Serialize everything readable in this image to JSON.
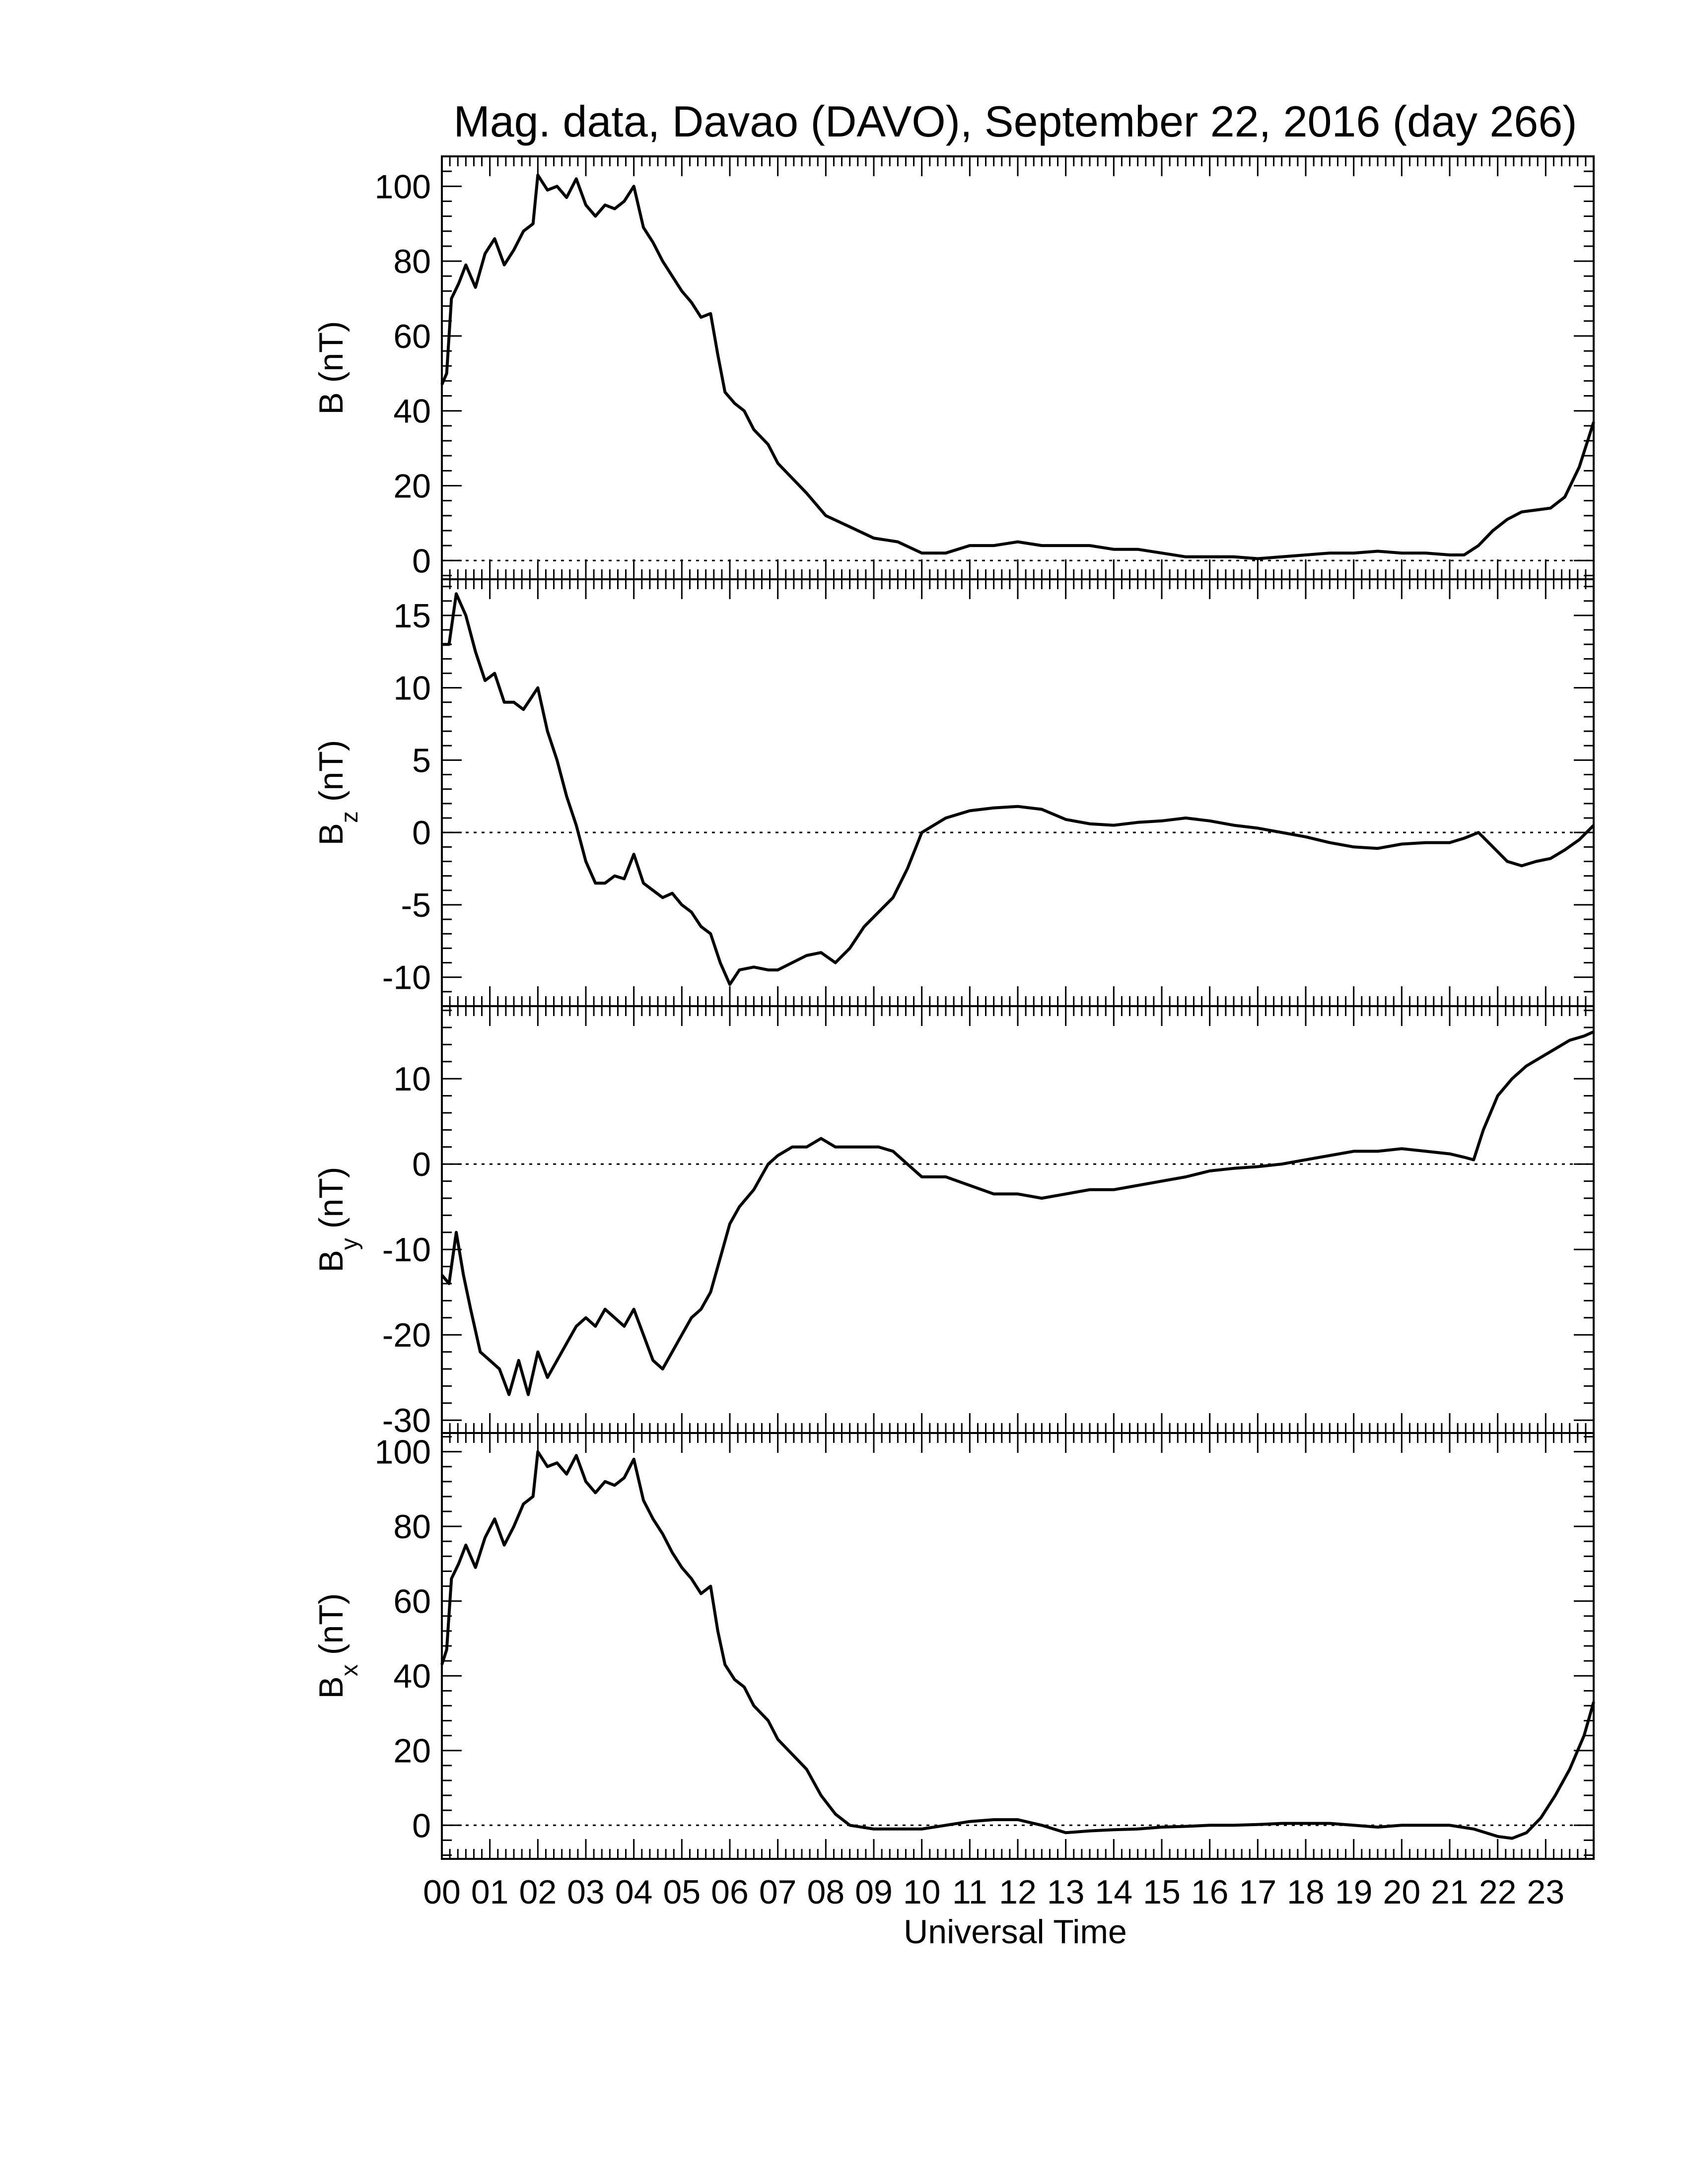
{
  "title": "Mag. data, Davao (DAVO), September 22, 2016 (day 266)",
  "xlabel": "Universal Time",
  "x_tick_labels": [
    "00",
    "01",
    "02",
    "03",
    "04",
    "05",
    "06",
    "07",
    "08",
    "09",
    "10",
    "11",
    "12",
    "13",
    "14",
    "15",
    "16",
    "17",
    "18",
    "19",
    "20",
    "21",
    "22",
    "23"
  ],
  "colors": {
    "trace": "#000000",
    "zero_line": "#000000",
    "background": "#ffffff"
  },
  "chart_data": [
    {
      "type": "line",
      "name": "B",
      "ylabel": "B (nT)",
      "xlim": [
        0,
        24
      ],
      "ylim": [
        -5,
        108
      ],
      "yticks": [
        0,
        20,
        40,
        60,
        80,
        100
      ],
      "zero_line": true,
      "x": [
        0,
        0.1,
        0.2,
        0.35,
        0.5,
        0.7,
        0.9,
        1.1,
        1.3,
        1.5,
        1.7,
        1.9,
        2.0,
        2.2,
        2.4,
        2.6,
        2.8,
        3.0,
        3.2,
        3.4,
        3.6,
        3.8,
        4.0,
        4.2,
        4.4,
        4.6,
        4.8,
        5.0,
        5.2,
        5.4,
        5.6,
        5.75,
        5.9,
        6.1,
        6.3,
        6.5,
        6.8,
        7.0,
        7.3,
        7.6,
        8.0,
        8.5,
        9.0,
        9.5,
        10.0,
        10.5,
        11.0,
        11.5,
        12.0,
        12.5,
        13.0,
        13.5,
        14.0,
        14.5,
        15.0,
        15.5,
        16.0,
        16.5,
        17.0,
        17.5,
        18.0,
        18.5,
        19.0,
        19.5,
        20.0,
        20.5,
        21.0,
        21.3,
        21.6,
        21.9,
        22.2,
        22.5,
        22.8,
        23.1,
        23.4,
        23.7,
        24.0
      ],
      "values": [
        47,
        50,
        70,
        74,
        79,
        73,
        82,
        86,
        79,
        83,
        88,
        90,
        103,
        99,
        100,
        97,
        102,
        95,
        92,
        95,
        94,
        96,
        100,
        89,
        85,
        80,
        76,
        72,
        69,
        65,
        66,
        55,
        45,
        42,
        40,
        35,
        31,
        26,
        22,
        18,
        12,
        9,
        6,
        5,
        2,
        2,
        4,
        4,
        5,
        4,
        4,
        4,
        3,
        3,
        2,
        1,
        1,
        1,
        0.5,
        1,
        1.5,
        2,
        2,
        2.5,
        2,
        2,
        1.5,
        1.5,
        4,
        8,
        11,
        13,
        13.5,
        14,
        17,
        25,
        37
      ]
    },
    {
      "type": "line",
      "name": "Bz",
      "ylabel": "B",
      "ylabel_sub": "z",
      "ylabel_unit": " (nT)",
      "xlim": [
        0,
        24
      ],
      "ylim": [
        -12,
        17.5
      ],
      "yticks": [
        -10,
        -5,
        0,
        5,
        10,
        15
      ],
      "zero_line": true,
      "x": [
        0,
        0.15,
        0.3,
        0.5,
        0.7,
        0.9,
        1.1,
        1.3,
        1.5,
        1.7,
        1.9,
        2.0,
        2.2,
        2.4,
        2.6,
        2.8,
        3.0,
        3.2,
        3.4,
        3.6,
        3.8,
        4.0,
        4.2,
        4.4,
        4.6,
        4.8,
        5.0,
        5.2,
        5.4,
        5.6,
        5.8,
        6.0,
        6.2,
        6.5,
        6.8,
        7.0,
        7.3,
        7.6,
        7.9,
        8.2,
        8.5,
        8.8,
        9.1,
        9.4,
        9.7,
        10.0,
        10.5,
        11.0,
        11.5,
        12.0,
        12.5,
        13.0,
        13.5,
        14.0,
        14.5,
        15.0,
        15.5,
        16.0,
        16.5,
        17.0,
        17.5,
        18.0,
        18.5,
        19.0,
        19.5,
        20.0,
        20.5,
        21.0,
        21.3,
        21.6,
        21.9,
        22.2,
        22.5,
        22.8,
        23.1,
        23.4,
        23.7,
        24.0
      ],
      "values": [
        13,
        13,
        16.5,
        15,
        12.5,
        10.5,
        11,
        9,
        9,
        8.5,
        9.5,
        10,
        7,
        5,
        2.5,
        0.5,
        -2,
        -3.5,
        -3.5,
        -3,
        -3.2,
        -1.5,
        -3.5,
        -4,
        -4.5,
        -4.2,
        -5,
        -5.5,
        -6.5,
        -7,
        -9,
        -10.5,
        -9.5,
        -9.3,
        -9.5,
        -9.5,
        -9,
        -8.5,
        -8.3,
        -9,
        -8,
        -6.5,
        -5.5,
        -4.5,
        -2.5,
        0,
        1,
        1.5,
        1.7,
        1.8,
        1.6,
        0.9,
        0.6,
        0.5,
        0.7,
        0.8,
        1,
        0.8,
        0.5,
        0.3,
        0,
        -0.3,
        -0.7,
        -1,
        -1.1,
        -0.8,
        -0.7,
        -0.7,
        -0.4,
        0,
        -1,
        -2,
        -2.3,
        -2,
        -1.8,
        -1.2,
        -0.5,
        0.5
      ]
    },
    {
      "type": "line",
      "name": "By",
      "ylabel": "B",
      "ylabel_sub": "y",
      "ylabel_unit": " (nT)",
      "xlim": [
        0,
        24
      ],
      "ylim": [
        -31.5,
        18.5
      ],
      "yticks": [
        -30,
        -20,
        -10,
        0,
        10
      ],
      "zero_line": true,
      "x": [
        0,
        0.15,
        0.3,
        0.45,
        0.6,
        0.8,
        1.0,
        1.2,
        1.4,
        1.6,
        1.8,
        2.0,
        2.2,
        2.4,
        2.6,
        2.8,
        3.0,
        3.2,
        3.4,
        3.6,
        3.8,
        4.0,
        4.2,
        4.4,
        4.6,
        4.8,
        5.0,
        5.2,
        5.4,
        5.6,
        5.8,
        6.0,
        6.2,
        6.5,
        6.8,
        7.0,
        7.3,
        7.6,
        7.9,
        8.2,
        8.5,
        8.8,
        9.1,
        9.4,
        9.7,
        10.0,
        10.5,
        11.0,
        11.5,
        12.0,
        12.5,
        13.0,
        13.5,
        14.0,
        14.5,
        15.0,
        15.5,
        16.0,
        16.5,
        17.0,
        17.5,
        18.0,
        18.5,
        19.0,
        19.5,
        20.0,
        20.5,
        21.0,
        21.3,
        21.5,
        21.7,
        22.0,
        22.3,
        22.6,
        22.9,
        23.2,
        23.5,
        23.8,
        24.0
      ],
      "values": [
        -13,
        -14,
        -8,
        -13,
        -17,
        -22,
        -23,
        -24,
        -27,
        -23,
        -27,
        -22,
        -25,
        -23,
        -21,
        -19,
        -18,
        -19,
        -17,
        -18,
        -19,
        -17,
        -20,
        -23,
        -24,
        -22,
        -20,
        -18,
        -17,
        -15,
        -11,
        -7,
        -5,
        -3,
        0,
        1,
        2,
        2,
        3,
        2,
        2,
        2,
        2,
        1.5,
        0,
        -1.5,
        -1.5,
        -2.5,
        -3.5,
        -3.5,
        -4,
        -3.5,
        -3,
        -3,
        -2.5,
        -2,
        -1.5,
        -0.8,
        -0.5,
        -0.3,
        0,
        0.5,
        1,
        1.5,
        1.5,
        1.8,
        1.5,
        1.2,
        0.8,
        0.5,
        4,
        8,
        10,
        11.5,
        12.5,
        13.5,
        14.5,
        15,
        15.5
      ]
    },
    {
      "type": "line",
      "name": "Bx",
      "ylabel": "B",
      "ylabel_sub": "x",
      "ylabel_unit": " (nT)",
      "xlim": [
        0,
        24
      ],
      "ylim": [
        -9,
        105
      ],
      "yticks": [
        0,
        20,
        40,
        60,
        80,
        100
      ],
      "zero_line": true,
      "x": [
        0,
        0.1,
        0.2,
        0.35,
        0.5,
        0.7,
        0.9,
        1.1,
        1.3,
        1.5,
        1.7,
        1.9,
        2.0,
        2.2,
        2.4,
        2.6,
        2.8,
        3.0,
        3.2,
        3.4,
        3.6,
        3.8,
        4.0,
        4.2,
        4.4,
        4.6,
        4.8,
        5.0,
        5.2,
        5.4,
        5.6,
        5.75,
        5.9,
        6.1,
        6.3,
        6.5,
        6.8,
        7.0,
        7.3,
        7.6,
        7.9,
        8.2,
        8.5,
        9.0,
        9.5,
        10.0,
        10.5,
        11.0,
        11.5,
        12.0,
        12.5,
        13.0,
        13.5,
        14.0,
        14.5,
        15.0,
        15.5,
        16.0,
        16.5,
        17.0,
        17.5,
        18.0,
        18.5,
        19.0,
        19.5,
        20.0,
        20.5,
        21.0,
        21.5,
        22.0,
        22.3,
        22.6,
        22.9,
        23.2,
        23.5,
        23.8,
        24.0
      ],
      "values": [
        43,
        47,
        66,
        70,
        75,
        69,
        77,
        82,
        75,
        80,
        86,
        88,
        100,
        96,
        97,
        94,
        99,
        92,
        89,
        92,
        91,
        93,
        98,
        87,
        82,
        78,
        73,
        69,
        66,
        62,
        64,
        52,
        43,
        39,
        37,
        32,
        28,
        23,
        19,
        15,
        8,
        3,
        0,
        -1,
        -1,
        -1,
        0,
        1,
        1.5,
        1.5,
        0,
        -2,
        -1.5,
        -1.2,
        -1,
        -0.5,
        -0.3,
        0,
        0,
        0.2,
        0.5,
        0.5,
        0.5,
        0,
        -0.5,
        0,
        0,
        0,
        -1,
        -3,
        -3.5,
        -2,
        2,
        8,
        15,
        24,
        33
      ]
    }
  ]
}
